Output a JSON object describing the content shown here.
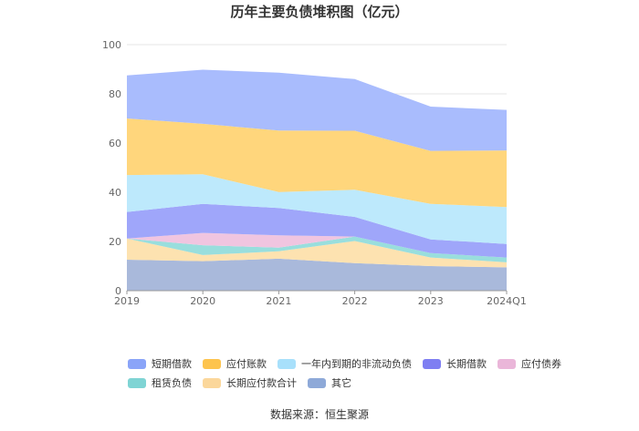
{
  "chart_data": {
    "type": "area",
    "stacked": true,
    "title": "历年主要负债堆积图（亿元）",
    "categories": [
      "2019",
      "2020",
      "2021",
      "2022",
      "2023",
      "2024Q1"
    ],
    "ylim": [
      0,
      100
    ],
    "yticks": [
      "0",
      "20",
      "40",
      "60",
      "80",
      "100"
    ],
    "grid": true,
    "legend_position": "bottom",
    "series": [
      {
        "name": "其它",
        "color": "#a9b9db",
        "values": [
          12.6,
          12.0,
          13.0,
          11.2,
          10.0,
          9.5
        ]
      },
      {
        "name": "长期应付款合计",
        "color": "#fde2b0",
        "values": [
          8.6,
          2.5,
          3.0,
          9.0,
          3.5,
          2.0
        ]
      },
      {
        "name": "租赁负债",
        "color": "#99dedd",
        "values": [
          0.0,
          4.0,
          1.5,
          1.8,
          1.8,
          2.0
        ]
      },
      {
        "name": "应付债券",
        "color": "#f0c5e0",
        "values": [
          0.0,
          5.0,
          5.0,
          0.0,
          0.0,
          0.0
        ]
      },
      {
        "name": "长期借款",
        "color": "#9fa6fa",
        "values": [
          10.8,
          11.8,
          11.1,
          8.0,
          5.5,
          5.5
        ]
      },
      {
        "name": "一年内到期的非流动负债",
        "color": "#bde9fc",
        "values": [
          15.0,
          12.0,
          6.5,
          11.0,
          14.5,
          15.0
        ]
      },
      {
        "name": "应付账款",
        "color": "#ffd67c",
        "values": [
          23.0,
          20.5,
          25.0,
          24.0,
          21.5,
          23.0
        ]
      },
      {
        "name": "短期借款",
        "color": "#a9bcfd",
        "values": [
          17.5,
          22.0,
          23.5,
          21.0,
          18.0,
          16.5
        ]
      }
    ],
    "legend_order": [
      "短期借款",
      "应付账款",
      "一年内到期的非流动负债",
      "长期借款",
      "应付债券",
      "租赁负债",
      "长期应付款合计",
      "其它"
    ],
    "legend_colors": {
      "短期借款": "#8aa4f8",
      "应付账款": "#fdc44e",
      "一年内到期的非流动负债": "#a8e0fb",
      "长期借款": "#7e7ef2",
      "应付债券": "#eab6d9",
      "租赁负债": "#7fd4d4",
      "长期应付款合计": "#fbd79b",
      "其它": "#8ea9d8"
    }
  },
  "footer": {
    "source": "数据来源：恒生聚源"
  }
}
